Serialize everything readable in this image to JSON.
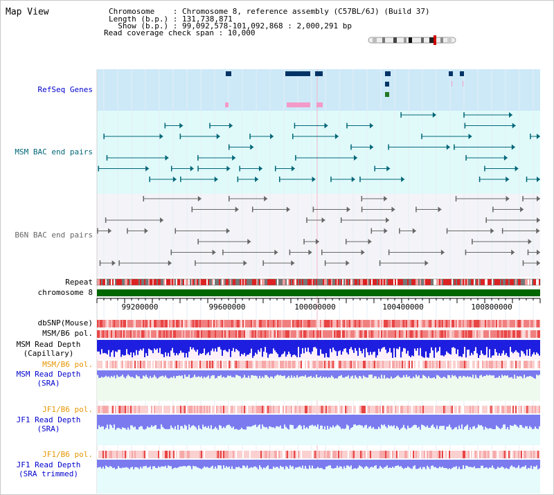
{
  "view_title": "Map View",
  "info": {
    "line1": "Chromosome    : Chromosome 8, reference assembly (C57BL/6J) (Build 37)",
    "line2": "Length (b.p.) : 131,738,871",
    "line3": "  Show (b.p.) : 99,092,578-101,092,868 : 2,000,291 bp",
    "line4": "Read coverage check span : 10,000"
  },
  "tracks": {
    "refseq": "RefSeq Genes",
    "msm_bac": "MSM BAC end pairs",
    "b6n_bac": "B6N BAC end pairs",
    "repeat": "Repeat",
    "chromosome": "chromosome 8",
    "dbsnp": "dbSNP(Mouse)",
    "msm_b6_pol": "MSM/B6 pol.",
    "msm_depth_cap_1": "MSM Read Depth",
    "msm_depth_cap_2": "(Capillary)",
    "msm_b6_pol_2": "MSM/B6 pol.",
    "msm_depth_sra_1": "MSM Read Depth",
    "msm_depth_sra_2": "(SRA)",
    "jf1_b6_pol": "JF1/B6 pol.",
    "jf1_depth_sra_1": "JF1 Read Depth",
    "jf1_depth_sra_2": "(SRA)",
    "jf1_b6_pol_2": "JF1/B6 pol.",
    "jf1_depth_trim_1": "JF1 Read Depth",
    "jf1_depth_trim_2": "(SRA trimmed)"
  },
  "axis": {
    "ticks": [
      "99200000",
      "99600000",
      "100000000",
      "100400000",
      "100800000"
    ]
  },
  "colors": {
    "refseq_bg": "#cde9f8",
    "msm_bg": "#e0fafa",
    "b6n_bg": "#f4f4f8",
    "chrom": "#006600",
    "msm_line": "#006677",
    "b6n_line": "#666666",
    "depth_blue": "#1e1ee0",
    "depth_light": "#7b7bef"
  }
}
